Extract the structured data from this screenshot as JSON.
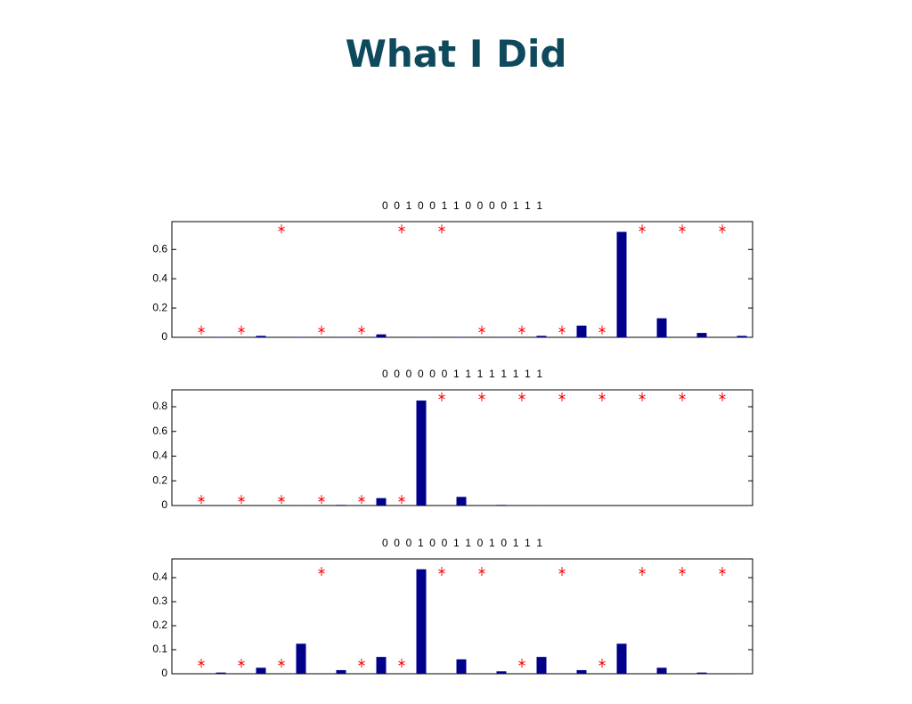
{
  "title": "What I Did",
  "chart_data": [
    {
      "type": "bar",
      "title": "0  0  1  0  0  1  1  0  0  0  0  1  1  1",
      "ylim": [
        0,
        0.79
      ],
      "yticks": [
        0,
        0.2,
        0.4,
        0.6
      ],
      "series": [
        {
          "color": "#00008b",
          "values": [
            0.002,
            0.01,
            0.002,
            0.002,
            0.02,
            0.002,
            0.002,
            0.002,
            0.01,
            0.08,
            0.72,
            0.13,
            0.03,
            0.01
          ]
        },
        {
          "type": "scatter",
          "color": "#ff0000",
          "values": [
            0.05,
            0.05,
            0.74,
            0.05,
            0.05,
            0.74,
            0.74,
            0.05,
            0.05,
            0.05,
            0.05,
            0.74,
            0.74,
            0.74
          ]
        }
      ]
    },
    {
      "type": "bar",
      "title": "0  0  0  0  0  0  1  1  1  1  1  1  1  1",
      "ylim": [
        0,
        0.937
      ],
      "yticks": [
        0,
        0.2,
        0.4,
        0.6,
        0.8
      ],
      "series": [
        {
          "color": "#00008b",
          "values": [
            0,
            0,
            0.001,
            0.005,
            0.06,
            0.85,
            0.07,
            0.005,
            0.001,
            0,
            0,
            0,
            0,
            0
          ]
        },
        {
          "type": "scatter",
          "color": "#ff0000",
          "values": [
            0.05,
            0.05,
            0.05,
            0.05,
            0.05,
            0.05,
            0.88,
            0.88,
            0.88,
            0.88,
            0.88,
            0.88,
            0.88,
            0.88
          ]
        }
      ]
    },
    {
      "type": "bar",
      "title": "0  0  0  1  0  0  1  1  0  1  0  1  1  1",
      "ylim": [
        0,
        0.478
      ],
      "yticks": [
        0,
        0.1,
        0.2,
        0.3,
        0.4
      ],
      "series": [
        {
          "color": "#00008b",
          "values": [
            0.005,
            0.025,
            0.125,
            0.015,
            0.07,
            0.435,
            0.06,
            0.01,
            0.07,
            0.015,
            0.125,
            0.025,
            0.005,
            0.001
          ]
        },
        {
          "type": "scatter",
          "color": "#ff0000",
          "values": [
            0.044,
            0.044,
            0.044,
            0.426,
            0.044,
            0.044,
            0.426,
            0.426,
            0.044,
            0.426,
            0.044,
            0.426,
            0.426,
            0.426
          ]
        }
      ]
    }
  ]
}
